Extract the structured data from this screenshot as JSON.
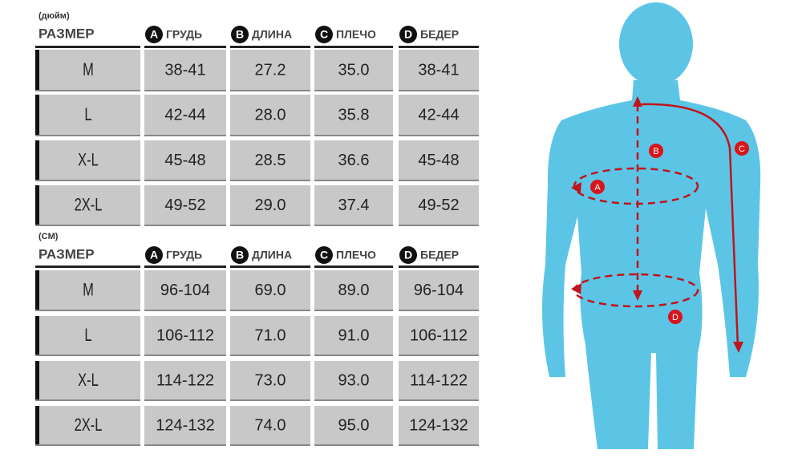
{
  "tables": [
    {
      "unit": "(дюйм)",
      "size_header": "РАЗМЕР",
      "columns": [
        {
          "badge": "A",
          "label": "ГРУДЬ"
        },
        {
          "badge": "B",
          "label": "ДЛИНА"
        },
        {
          "badge": "C",
          "label": "ПЛЕЧО"
        },
        {
          "badge": "D",
          "label": "БЕДЕР"
        }
      ],
      "rows": [
        [
          "M",
          "38-41",
          "27.2",
          "35.0",
          "38-41"
        ],
        [
          "L",
          "42-44",
          "28.0",
          "35.8",
          "42-44"
        ],
        [
          "X-L",
          "45-48",
          "28.5",
          "36.6",
          "45-48"
        ],
        [
          "2X-L",
          "49-52",
          "29.0",
          "37.4",
          "49-52"
        ]
      ]
    },
    {
      "unit": "(CM)",
      "size_header": "РАЗМЕР",
      "columns": [
        {
          "badge": "A",
          "label": "ГРУДЬ"
        },
        {
          "badge": "B",
          "label": "ДЛИНА"
        },
        {
          "badge": "C",
          "label": "ПЛЕЧО"
        },
        {
          "badge": "D",
          "label": "БЕДЕР"
        }
      ],
      "rows": [
        [
          "M",
          "96-104",
          "69.0",
          "89.0",
          "96-104"
        ],
        [
          "L",
          "106-112",
          "71.0",
          "91.0",
          "106-112"
        ],
        [
          "X-L",
          "114-122",
          "73.0",
          "93.0",
          "114-122"
        ],
        [
          "2X-L",
          "124-132",
          "74.0",
          "95.0",
          "124-132"
        ]
      ]
    }
  ],
  "figure": {
    "labels": [
      {
        "text": "B"
      },
      {
        "text": "A"
      },
      {
        "text": "C"
      },
      {
        "text": "D"
      }
    ]
  }
}
